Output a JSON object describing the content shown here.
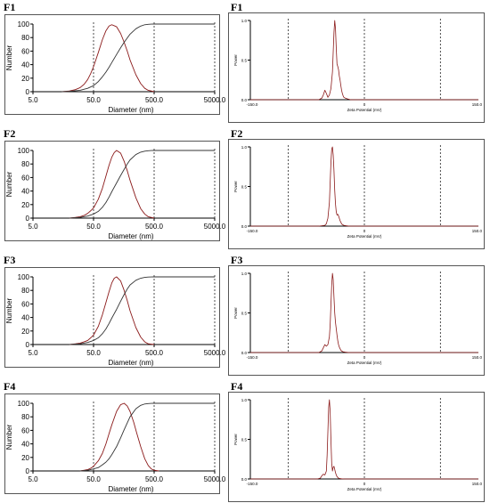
{
  "colors": {
    "curve": "#8b1a1a",
    "cumulative": "#333333",
    "axis": "#000000"
  },
  "chart_data": [
    {
      "panel": "F1",
      "type": "line",
      "kind": "size",
      "xlabel": "Diameter (nm)",
      "ylabel": "Number",
      "xscale": "log",
      "xlim": [
        5.0,
        5000.0
      ],
      "ylim": [
        0,
        100
      ],
      "xticks": [
        "5.0",
        "50.0",
        "500.0",
        "5000.0"
      ],
      "yticks": [
        "0",
        "20",
        "40",
        "60",
        "80",
        "100"
      ],
      "vlines": [
        50,
        500,
        5000
      ],
      "series": [
        {
          "x": [
            15,
            20,
            25,
            30,
            35,
            40,
            45,
            50,
            60,
            70,
            80,
            90,
            100,
            120,
            140,
            160,
            180,
            200,
            250,
            300,
            350,
            400,
            500
          ],
          "values": [
            0,
            1,
            3,
            6,
            11,
            18,
            27,
            37,
            58,
            77,
            90,
            97,
            99,
            96,
            86,
            73,
            60,
            47,
            25,
            12,
            5,
            2,
            0
          ]
        },
        {
          "x": [
            15,
            20,
            30,
            40,
            50,
            60,
            70,
            80,
            90,
            100,
            120,
            140,
            160,
            200,
            250,
            300,
            350,
            400,
            450,
            500,
            1000,
            5000
          ],
          "values": [
            0,
            0.5,
            2,
            5,
            9,
            15,
            22,
            29,
            36,
            43,
            55,
            65,
            73,
            85,
            93,
            97,
            99,
            99.6,
            99.9,
            100,
            100,
            100
          ]
        }
      ]
    },
    {
      "panel": "F1",
      "type": "line",
      "kind": "zeta",
      "xlabel": "Zeta Potential (mV)",
      "ylabel": "Power",
      "xlim": [
        -150.0,
        150.0
      ],
      "ylim": [
        0,
        1.0
      ],
      "xticks": [
        "-150.0",
        "0",
        "150.0"
      ],
      "yticks": [
        "0.0",
        "0.5",
        "1.0"
      ],
      "vlines": [
        -100,
        0,
        100
      ],
      "series": [
        {
          "x": [
            -150,
            -60,
            -56,
            -54,
            -52,
            -50,
            -48,
            -46,
            -44,
            -42,
            -41,
            -40,
            -39,
            -38,
            -37,
            -36,
            -35,
            -34,
            -33,
            -32,
            -31,
            -30,
            -29,
            -28,
            -27,
            -25,
            -22,
            -18,
            150
          ],
          "values": [
            0,
            0,
            0.02,
            0.06,
            0.12,
            0.08,
            0.03,
            0.06,
            0.14,
            0.35,
            0.6,
            0.85,
            1.0,
            0.9,
            0.65,
            0.45,
            0.42,
            0.38,
            0.3,
            0.25,
            0.18,
            0.12,
            0.08,
            0.05,
            0.03,
            0.02,
            0.01,
            0,
            0
          ]
        }
      ]
    },
    {
      "panel": "F2",
      "type": "line",
      "kind": "size",
      "xlabel": "Diameter (nm)",
      "ylabel": "Number",
      "xscale": "log",
      "xlim": [
        5.0,
        5000.0
      ],
      "ylim": [
        0,
        100
      ],
      "xticks": [
        "5.0",
        "50.0",
        "500.0",
        "5000.0"
      ],
      "yticks": [
        "0",
        "20",
        "40",
        "60",
        "80",
        "100"
      ],
      "vlines": [
        50,
        500,
        5000
      ],
      "series": [
        {
          "x": [
            20,
            25,
            30,
            35,
            40,
            45,
            50,
            60,
            70,
            80,
            90,
            100,
            110,
            120,
            140,
            160,
            180,
            200,
            250,
            300,
            350,
            400,
            500
          ],
          "values": [
            0,
            1,
            2,
            4,
            7,
            11,
            15,
            28,
            44,
            62,
            78,
            90,
            97,
            100,
            96,
            84,
            70,
            56,
            30,
            14,
            6,
            2,
            0
          ]
        },
        {
          "x": [
            20,
            30,
            40,
            50,
            60,
            70,
            80,
            90,
            100,
            120,
            140,
            160,
            180,
            200,
            250,
            300,
            350,
            400,
            450,
            500,
            1000,
            5000
          ],
          "values": [
            0,
            1,
            3,
            6,
            10,
            16,
            23,
            31,
            39,
            52,
            63,
            72,
            80,
            86,
            94,
            97.5,
            99,
            99.6,
            99.9,
            100,
            100,
            100
          ]
        }
      ]
    },
    {
      "panel": "F2",
      "type": "line",
      "kind": "zeta",
      "xlabel": "Zeta Potential (mV)",
      "ylabel": "Power",
      "xlim": [
        -150.0,
        150.0
      ],
      "ylim": [
        0,
        1.0
      ],
      "xticks": [
        "-150.0",
        "0",
        "150.0"
      ],
      "yticks": [
        "0.0",
        "0.5",
        "1.0"
      ],
      "vlines": [
        -100,
        0,
        100
      ],
      "series": [
        {
          "x": [
            -150,
            -60,
            -52,
            -50,
            -48,
            -46,
            -45,
            -44,
            -43,
            -42,
            -41,
            -40,
            -39,
            -38,
            -37,
            -36,
            -35,
            -34,
            -33,
            -32,
            -31,
            -30,
            -29,
            -27,
            -24,
            -20,
            150
          ],
          "values": [
            0,
            0,
            0.01,
            0.03,
            0.1,
            0.3,
            0.55,
            0.8,
            0.97,
            1.0,
            0.9,
            0.7,
            0.45,
            0.28,
            0.18,
            0.14,
            0.15,
            0.13,
            0.1,
            0.07,
            0.05,
            0.03,
            0.02,
            0.01,
            0.005,
            0,
            0
          ]
        }
      ]
    },
    {
      "panel": "F3",
      "type": "line",
      "kind": "size",
      "xlabel": "Diameter (nm)",
      "ylabel": "Number",
      "xscale": "log",
      "xlim": [
        5.0,
        5000.0
      ],
      "ylim": [
        0,
        100
      ],
      "xticks": [
        "5.0",
        "50.0",
        "500.0",
        "5000.0"
      ],
      "yticks": [
        "0",
        "20",
        "40",
        "60",
        "80",
        "100"
      ],
      "vlines": [
        50,
        500,
        5000
      ],
      "series": [
        {
          "x": [
            20,
            25,
            30,
            35,
            40,
            45,
            50,
            60,
            70,
            80,
            90,
            100,
            110,
            120,
            140,
            160,
            180,
            200,
            250,
            300,
            350,
            400,
            500
          ],
          "values": [
            0,
            1,
            2,
            4,
            6,
            10,
            14,
            27,
            44,
            62,
            78,
            91,
            98,
            100,
            94,
            80,
            65,
            50,
            25,
            11,
            4,
            1,
            0
          ]
        },
        {
          "x": [
            20,
            30,
            40,
            50,
            60,
            70,
            80,
            90,
            100,
            120,
            140,
            160,
            180,
            200,
            250,
            300,
            350,
            400,
            450,
            500,
            1000,
            5000
          ],
          "values": [
            0,
            1,
            3,
            6,
            10,
            16,
            23,
            31,
            39,
            52,
            64,
            74,
            82,
            88,
            95,
            98,
            99.3,
            99.7,
            99.9,
            100,
            100,
            100
          ]
        }
      ]
    },
    {
      "panel": "F3",
      "type": "line",
      "kind": "zeta",
      "xlabel": "Zeta Potential (mV)",
      "ylabel": "Power",
      "xlim": [
        -150.0,
        150.0
      ],
      "ylim": [
        0,
        1.0
      ],
      "xticks": [
        "-150.0",
        "0",
        "150.0"
      ],
      "yticks": [
        "0.0",
        "0.5",
        "1.0"
      ],
      "vlines": [
        -100,
        0,
        100
      ],
      "series": [
        {
          "x": [
            -150,
            -60,
            -56,
            -54,
            -52,
            -50,
            -48,
            -46,
            -45,
            -44,
            -43,
            -42,
            -41,
            -40,
            -39,
            -38,
            -37,
            -36,
            -35,
            -34,
            -33,
            -32,
            -31,
            -30,
            -28,
            -25,
            -20,
            150
          ],
          "values": [
            0,
            0,
            0.02,
            0.06,
            0.1,
            0.08,
            0.1,
            0.2,
            0.35,
            0.6,
            0.85,
            1.0,
            0.92,
            0.7,
            0.5,
            0.38,
            0.3,
            0.22,
            0.15,
            0.1,
            0.07,
            0.05,
            0.03,
            0.02,
            0.01,
            0.005,
            0,
            0
          ]
        }
      ]
    },
    {
      "panel": "F4",
      "type": "line",
      "kind": "size",
      "xlabel": "Diameter (nm)",
      "ylabel": "Number",
      "xscale": "log",
      "xlim": [
        5.0,
        5000.0
      ],
      "ylim": [
        0,
        100
      ],
      "xticks": [
        "5.0",
        "50.0",
        "500.0",
        "5000.0"
      ],
      "yticks": [
        "0",
        "20",
        "40",
        "60",
        "80",
        "100"
      ],
      "vlines": [
        50,
        500,
        5000
      ],
      "series": [
        {
          "x": [
            30,
            35,
            40,
            45,
            50,
            60,
            70,
            80,
            90,
            100,
            120,
            140,
            160,
            180,
            200,
            230,
            260,
            300,
            350,
            400,
            450,
            500,
            600
          ],
          "values": [
            0,
            1,
            2,
            4,
            7,
            15,
            26,
            40,
            55,
            68,
            88,
            98,
            100,
            96,
            88,
            72,
            55,
            36,
            18,
            8,
            3,
            1,
            0
          ]
        },
        {
          "x": [
            30,
            40,
            50,
            60,
            70,
            80,
            90,
            100,
            120,
            140,
            160,
            180,
            200,
            250,
            300,
            350,
            400,
            450,
            500,
            600,
            1000,
            5000
          ],
          "values": [
            0,
            1,
            3,
            5,
            9,
            13,
            18,
            24,
            36,
            49,
            61,
            71,
            80,
            92,
            97,
            99,
            99.6,
            99.9,
            100,
            100,
            100,
            100
          ]
        }
      ]
    },
    {
      "panel": "F4",
      "type": "line",
      "kind": "zeta",
      "xlabel": "Zeta Potential (mV)",
      "ylabel": "Power",
      "xlim": [
        -150.0,
        150.0
      ],
      "ylim": [
        0,
        1.0
      ],
      "xticks": [
        "-150.0",
        "0",
        "150.0"
      ],
      "yticks": [
        "0.0",
        "0.5",
        "1.0"
      ],
      "vlines": [
        -100,
        0,
        100
      ],
      "series": [
        {
          "x": [
            -150,
            -62,
            -58,
            -56,
            -54,
            -52,
            -50,
            -49,
            -48,
            -47,
            -46,
            -45,
            -44,
            -43,
            -42,
            -41,
            -40,
            -39,
            -38,
            -37,
            -36,
            -35,
            -34,
            -32,
            -30,
            -26,
            150
          ],
          "values": [
            0,
            0,
            0.01,
            0.04,
            0.06,
            0.05,
            0.1,
            0.3,
            0.6,
            0.9,
            1.0,
            0.85,
            0.5,
            0.2,
            0.1,
            0.15,
            0.16,
            0.12,
            0.08,
            0.05,
            0.03,
            0.02,
            0.01,
            0.005,
            0.002,
            0,
            0
          ]
        }
      ]
    }
  ]
}
